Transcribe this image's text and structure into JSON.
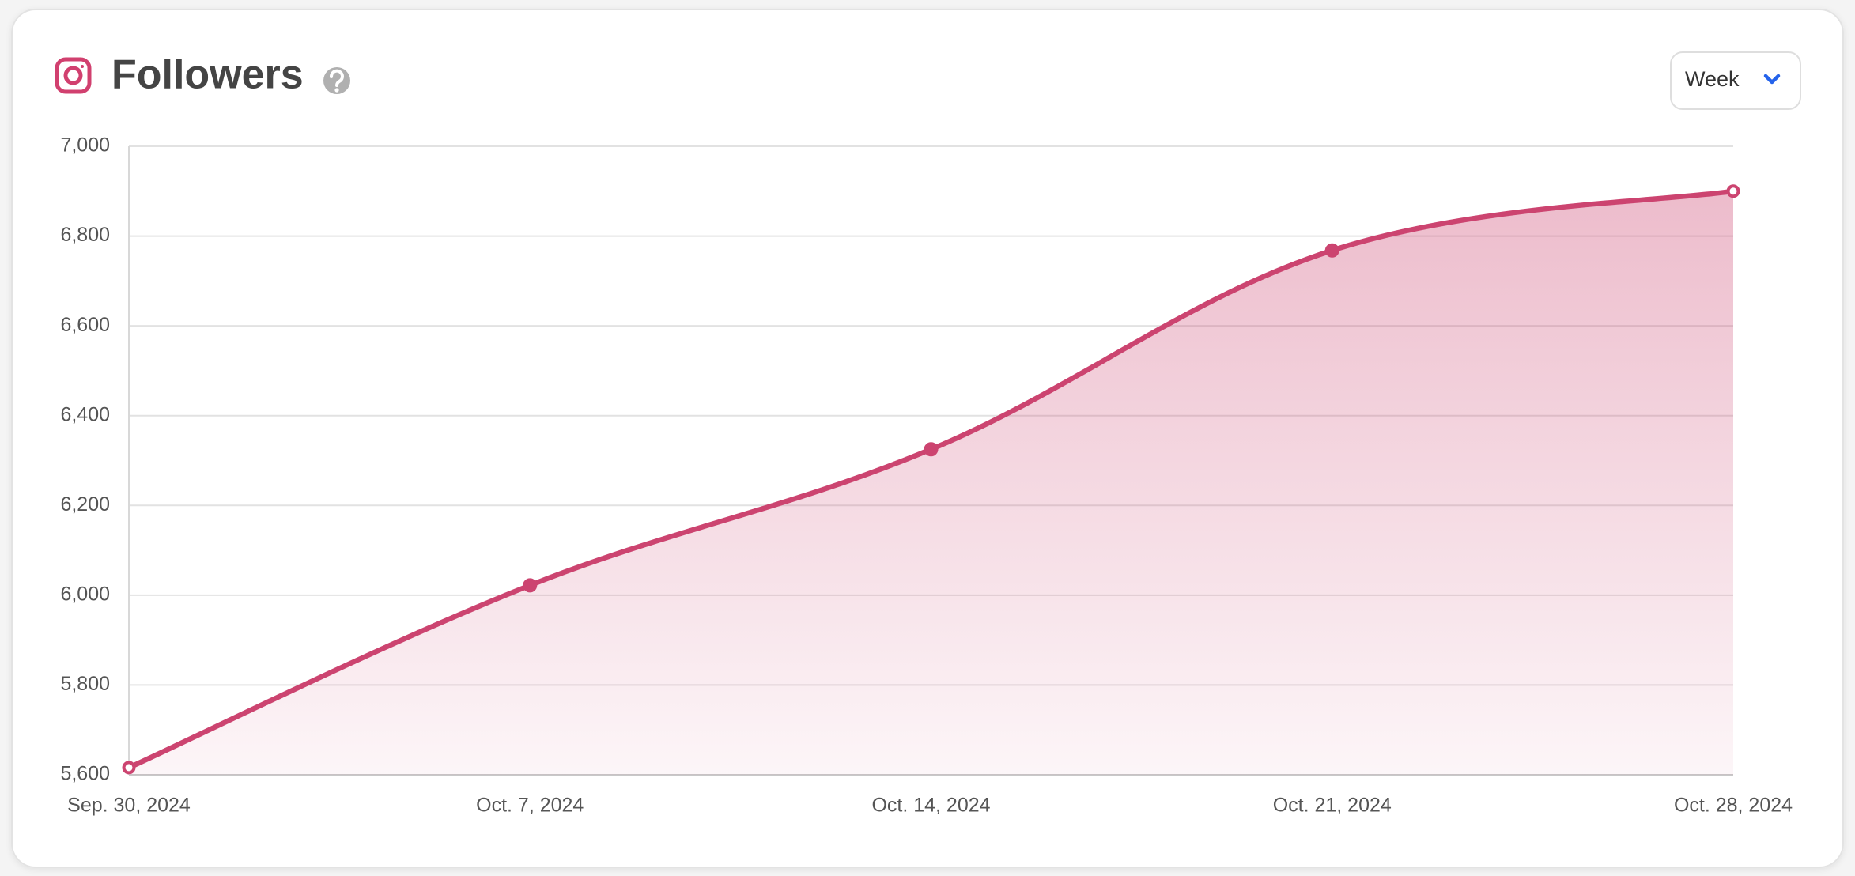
{
  "controls": {
    "period": "Week"
  },
  "chart_data": {
    "type": "area",
    "title": "Followers",
    "categories": [
      "Sep. 30, 2024",
      "Oct. 7, 2024",
      "Oct. 14, 2024",
      "Oct. 21, 2024",
      "Oct. 28, 2024"
    ],
    "series": [
      {
        "name": "Followers",
        "color": "#cc4470",
        "values": [
          5616,
          6022,
          6325,
          6768,
          6900
        ]
      }
    ],
    "ylim": [
      5600,
      7000
    ],
    "yticks": [
      {
        "value": 5600,
        "label": "5,600"
      },
      {
        "value": 5800,
        "label": "5,800"
      },
      {
        "value": 6000,
        "label": "6,000"
      },
      {
        "value": 6200,
        "label": "6,200"
      },
      {
        "value": 6400,
        "label": "6,400"
      },
      {
        "value": 6600,
        "label": "6,600"
      },
      {
        "value": 6800,
        "label": "6,800"
      },
      {
        "value": 7000,
        "label": "7,000"
      }
    ],
    "grid": true
  }
}
